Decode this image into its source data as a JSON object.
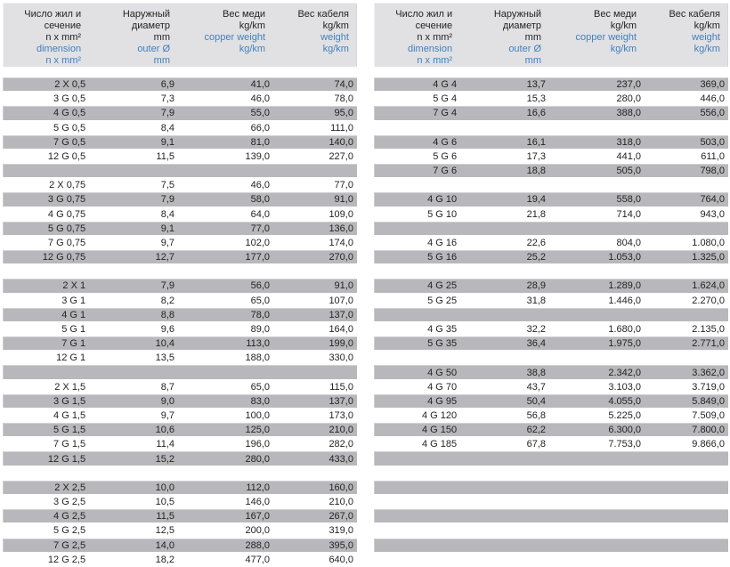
{
  "colors": {
    "row_gray": "#b8b8bc",
    "header_bg": "#e1e1e3",
    "text": "#232323",
    "accent_blue": "#4181bf",
    "page_bg": "#ffffff"
  },
  "header": {
    "columns": [
      {
        "name": "dimension",
        "ru": [
          "Число жил и",
          "сечение",
          "n x mm²"
        ],
        "en": [
          "dimension",
          "n x mm²"
        ]
      },
      {
        "name": "outer-diameter",
        "ru": [
          "Наружный",
          "диаметр",
          "mm"
        ],
        "en": [
          "outer Ø",
          "mm"
        ]
      },
      {
        "name": "copper-weight",
        "ru": [
          "Вес меди",
          "kg/km"
        ],
        "en": [
          "copper weight",
          "kg/km"
        ]
      },
      {
        "name": "cable-weight",
        "ru": [
          "Вес кабеля",
          "kg/km"
        ],
        "en": [
          "weight",
          "kg/km"
        ]
      }
    ]
  },
  "tables": [
    {
      "id": "left",
      "rows": [
        [
          "2 X 0,5",
          "6,9",
          "41,0",
          "74,0"
        ],
        [
          "3 G 0,5",
          "7,3",
          "46,0",
          "78,0"
        ],
        [
          "4 G 0,5",
          "7,9",
          "55,0",
          "95,0"
        ],
        [
          "5 G 0,5",
          "8,4",
          "66,0",
          "111,0"
        ],
        [
          "7 G 0,5",
          "9,1",
          "81,0",
          "140,0"
        ],
        [
          "12 G 0,5",
          "11,5",
          "139,0",
          "227,0"
        ],
        [],
        [
          "2 X 0,75",
          "7,5",
          "46,0",
          "77,0"
        ],
        [
          "3 G 0,75",
          "7,9",
          "58,0",
          "91,0"
        ],
        [
          "4 G 0,75",
          "8,4",
          "64,0",
          "109,0"
        ],
        [
          "5 G 0,75",
          "9,1",
          "77,0",
          "136,0"
        ],
        [
          "7 G 0,75",
          "9,7",
          "102,0",
          "174,0"
        ],
        [
          "12 G 0,75",
          "12,7",
          "177,0",
          "270,0"
        ],
        [],
        [
          "2 X 1",
          "7,9",
          "56,0",
          "91,0"
        ],
        [
          "3 G 1",
          "8,2",
          "65,0",
          "107,0"
        ],
        [
          "4 G 1",
          "8,8",
          "78,0",
          "137,0"
        ],
        [
          "5 G 1",
          "9,6",
          "89,0",
          "164,0"
        ],
        [
          "7 G 1",
          "10,4",
          "113,0",
          "199,0"
        ],
        [
          "12 G 1",
          "13,5",
          "188,0",
          "330,0"
        ],
        [],
        [
          "2 X 1,5",
          "8,7",
          "65,0",
          "115,0"
        ],
        [
          "3 G 1,5",
          "9,0",
          "83,0",
          "137,0"
        ],
        [
          "4 G 1,5",
          "9,7",
          "100,0",
          "173,0"
        ],
        [
          "5 G 1,5",
          "10,6",
          "125,0",
          "210,0"
        ],
        [
          "7 G 1,5",
          "11,4",
          "196,0",
          "282,0"
        ],
        [
          "12 G 1,5",
          "15,2",
          "280,0",
          "433,0"
        ],
        [],
        [
          "2 X 2,5",
          "10,0",
          "112,0",
          "160,0"
        ],
        [
          "3 G 2,5",
          "10,5",
          "146,0",
          "210,0"
        ],
        [
          "4 G 2,5",
          "11,5",
          "167,0",
          "267,0"
        ],
        [
          "5 G 2,5",
          "12,5",
          "200,0",
          "319,0"
        ],
        [
          "7 G 2,5",
          "14,0",
          "288,0",
          "395,0"
        ],
        [
          "12 G 2,5",
          "18,2",
          "477,0",
          "640,0"
        ]
      ]
    },
    {
      "id": "right",
      "rows": [
        [
          "4 G 4",
          "13,7",
          "237,0",
          "369,0"
        ],
        [
          "5 G 4",
          "15,3",
          "280,0",
          "446,0"
        ],
        [
          "7 G 4",
          "16,6",
          "388,0",
          "556,0"
        ],
        [],
        [
          "4 G 6",
          "16,1",
          "318,0",
          "503,0"
        ],
        [
          "5 G 6",
          "17,3",
          "441,0",
          "611,0"
        ],
        [
          "7 G 6",
          "18,8",
          "505,0",
          "798,0"
        ],
        [],
        [
          "4 G 10",
          "19,4",
          "558,0",
          "764,0"
        ],
        [
          "5 G 10",
          "21,8",
          "714,0",
          "943,0"
        ],
        [],
        [
          "4 G 16",
          "22,6",
          "804,0",
          "1.080,0"
        ],
        [
          "5 G 16",
          "25,2",
          "1.053,0",
          "1.325,0"
        ],
        [],
        [
          "4 G 25",
          "28,9",
          "1.289,0",
          "1.624,0"
        ],
        [
          "5 G 25",
          "31,8",
          "1.446,0",
          "2.270,0"
        ],
        [],
        [
          "4 G 35",
          "32,2",
          "1.680,0",
          "2.135,0"
        ],
        [
          "5 G 35",
          "36,4",
          "1.975,0",
          "2.771,0"
        ],
        [],
        [
          "4 G 50",
          "38,8",
          "2.342,0",
          "3.362,0"
        ],
        [
          "4 G 70",
          "43,7",
          "3.103,0",
          "3.719,0"
        ],
        [
          "4 G 95",
          "50,4",
          "4.055,0",
          "5.849,0"
        ],
        [
          "4 G 120",
          "56,8",
          "5.225,0",
          "7.509,0"
        ],
        [
          "4 G 150",
          "62,2",
          "6.300,0",
          "7.800,0"
        ],
        [
          "4 G 185",
          "67,8",
          "7.753,0",
          "9.866,0"
        ],
        [],
        [],
        [],
        [],
        [],
        [],
        [],
        []
      ]
    }
  ]
}
